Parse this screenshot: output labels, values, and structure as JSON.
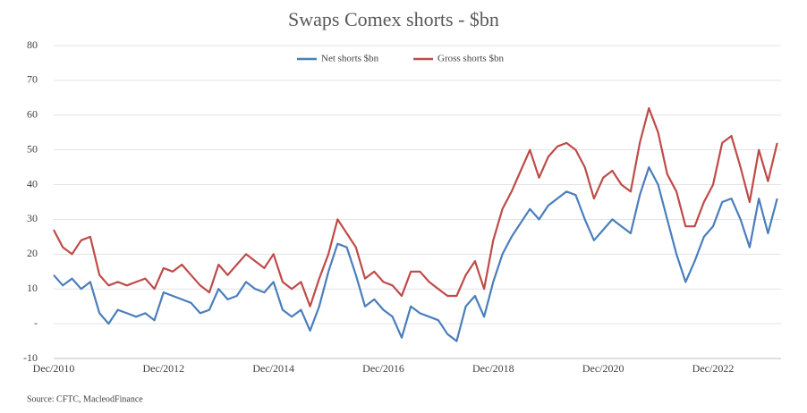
{
  "chart_data": {
    "type": "line",
    "title": "Swaps Comex shorts - $bn",
    "source": "Source: CFTC, MacleodFinance",
    "categories": [
      "Dec/2010",
      null,
      null,
      null,
      null,
      null,
      null,
      null,
      null,
      null,
      null,
      null,
      "Dec/2012",
      null,
      null,
      null,
      null,
      null,
      null,
      null,
      null,
      null,
      null,
      null,
      "Dec/2014",
      null,
      null,
      null,
      null,
      null,
      null,
      null,
      null,
      null,
      null,
      null,
      "Dec/2016",
      null,
      null,
      null,
      null,
      null,
      null,
      null,
      null,
      null,
      null,
      null,
      "Dec/2018",
      null,
      null,
      null,
      null,
      null,
      null,
      null,
      null,
      null,
      null,
      null,
      "Dec/2020",
      null,
      null,
      null,
      null,
      null,
      null,
      null,
      null,
      null,
      null,
      null,
      "Dec/2022",
      null,
      null,
      null,
      null,
      null,
      null,
      null
    ],
    "series": [
      {
        "name": "Net shorts $bn",
        "color": "#4a7ebb",
        "values": [
          14,
          11,
          13,
          10,
          12,
          3,
          0,
          4,
          3,
          2,
          3,
          1,
          9,
          8,
          7,
          6,
          3,
          4,
          10,
          7,
          8,
          12,
          10,
          9,
          12,
          4,
          2,
          4,
          -2,
          5,
          15,
          23,
          22,
          14,
          5,
          7,
          4,
          2,
          -4,
          5,
          3,
          2,
          1,
          -3,
          -5,
          5,
          8,
          2,
          12,
          20,
          25,
          29,
          33,
          30,
          34,
          36,
          38,
          37,
          30,
          24,
          27,
          30,
          28,
          26,
          37,
          45,
          40,
          30,
          20,
          12,
          18,
          25,
          28,
          35,
          36,
          30,
          22,
          36,
          26,
          36
        ]
      },
      {
        "name": "Gross shorts $bn",
        "color": "#be4b48",
        "values": [
          27,
          22,
          20,
          24,
          25,
          14,
          11,
          12,
          11,
          12,
          13,
          10,
          16,
          15,
          17,
          14,
          11,
          9,
          17,
          14,
          17,
          20,
          18,
          16,
          20,
          12,
          10,
          12,
          5,
          13,
          20,
          30,
          26,
          22,
          13,
          15,
          12,
          11,
          8,
          15,
          15,
          12,
          10,
          8,
          8,
          14,
          18,
          10,
          24,
          33,
          38,
          44,
          50,
          42,
          48,
          51,
          52,
          50,
          45,
          36,
          42,
          44,
          40,
          38,
          52,
          62,
          55,
          43,
          38,
          28,
          28,
          35,
          40,
          52,
          54,
          45,
          35,
          50,
          41,
          52
        ]
      }
    ],
    "ylim": [
      -10,
      80
    ],
    "yticks": [
      -10,
      {
        "value": 0,
        "label": "-"
      },
      10,
      20,
      30,
      40,
      50,
      60,
      70,
      80
    ],
    "grid": true,
    "legend": "top"
  }
}
